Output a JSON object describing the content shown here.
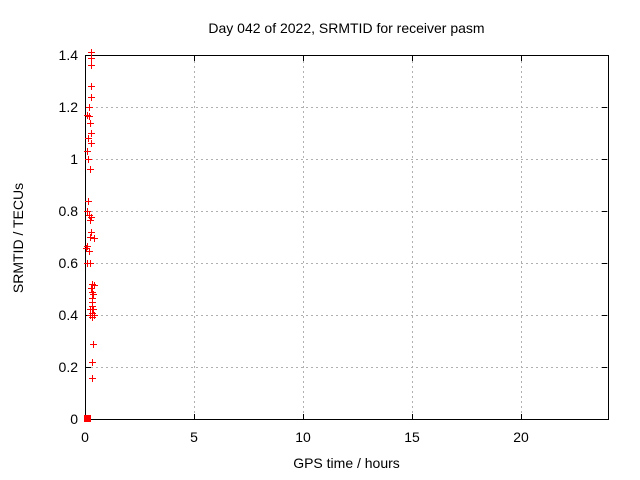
{
  "chart_data": {
    "type": "scatter",
    "title": "Day 042 of 2022, SRMTID for receiver pasm",
    "xlabel": "GPS time / hours",
    "ylabel": "SRMTID / TECUs",
    "xlim": [
      0,
      24
    ],
    "ylim": [
      0,
      1.4
    ],
    "x_ticks": [
      0,
      5,
      10,
      15,
      20
    ],
    "x_tick_labels": [
      "0",
      "5",
      "10",
      "15",
      "20"
    ],
    "y_ticks": [
      0,
      0.2,
      0.4,
      0.6,
      0.8,
      1,
      1.2,
      1.4
    ],
    "y_tick_labels": [
      "0",
      "0.2",
      "0.4",
      "0.6",
      "0.8",
      "1",
      "1.2",
      "1.4"
    ],
    "grid": true,
    "legend_position": "none",
    "marker": "plus",
    "colors": {
      "marker": "#ff0000",
      "axis": "#000000",
      "grid": "#b0b0b0",
      "background": "#ffffff"
    },
    "series": [
      {
        "name": "SRMTID",
        "points": [
          [
            0.28,
            1.41
          ],
          [
            0.28,
            1.39
          ],
          [
            0.28,
            1.36
          ],
          [
            0.28,
            1.28
          ],
          [
            0.28,
            1.24
          ],
          [
            0.18,
            1.2
          ],
          [
            0.11,
            1.17
          ],
          [
            0.2,
            1.165
          ],
          [
            0.25,
            1.14
          ],
          [
            0.28,
            1.1
          ],
          [
            0.14,
            1.08
          ],
          [
            0.28,
            1.06
          ],
          [
            0.11,
            1.03
          ],
          [
            0.14,
            1.0
          ],
          [
            0.23,
            0.96
          ],
          [
            0.14,
            0.84
          ],
          [
            0.09,
            0.8
          ],
          [
            0.18,
            0.785
          ],
          [
            0.28,
            0.775
          ],
          [
            0.23,
            0.765
          ],
          [
            0.28,
            0.72
          ],
          [
            0.23,
            0.7
          ],
          [
            0.41,
            0.695
          ],
          [
            0.09,
            0.665
          ],
          [
            0.05,
            0.658
          ],
          [
            0.18,
            0.648
          ],
          [
            0.09,
            0.6
          ],
          [
            0.23,
            0.6
          ],
          [
            0.32,
            0.518
          ],
          [
            0.41,
            0.514
          ],
          [
            0.28,
            0.505
          ],
          [
            0.32,
            0.487
          ],
          [
            0.37,
            0.482
          ],
          [
            0.32,
            0.467
          ],
          [
            0.32,
            0.451
          ],
          [
            0.32,
            0.435
          ],
          [
            0.23,
            0.422
          ],
          [
            0.37,
            0.422
          ],
          [
            0.32,
            0.409
          ],
          [
            0.23,
            0.4
          ],
          [
            0.41,
            0.4
          ],
          [
            0.32,
            0.392
          ],
          [
            0.37,
            0.288
          ],
          [
            0.32,
            0.221
          ],
          [
            0.32,
            0.157
          ]
        ]
      }
    ],
    "origin_cluster": {
      "x": 0.09,
      "y": 0.005,
      "note": "dense overlapping points at origin rendered as filled square"
    }
  }
}
